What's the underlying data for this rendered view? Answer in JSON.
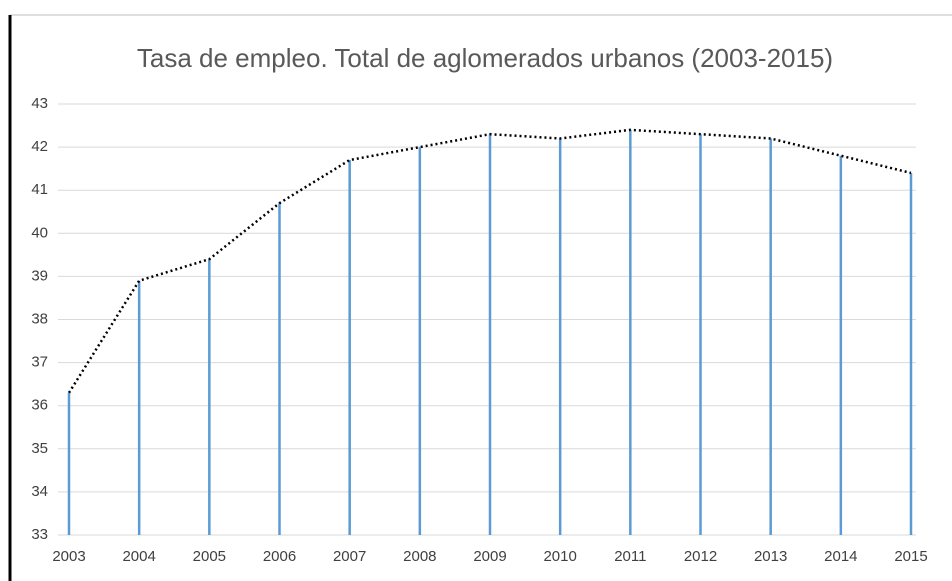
{
  "chart_data": {
    "type": "line",
    "title": "Tasa de empleo. Total de aglomerados urbanos (2003-2015)",
    "categories": [
      "2003",
      "2004",
      "2005",
      "2006",
      "2007",
      "2008",
      "2009",
      "2010",
      "2011",
      "2012",
      "2013",
      "2014",
      "2015"
    ],
    "series": [
      {
        "color": "#000000",
        "drop_line_color": "#5b9bd5",
        "values": [
          36.3,
          38.9,
          39.4,
          40.7,
          41.7,
          42.0,
          42.3,
          42.2,
          42.4,
          42.3,
          42.2,
          41.8,
          41.4
        ]
      }
    ],
    "ylim": [
      33,
      43
    ],
    "yticks": [
      33,
      34,
      35,
      36,
      37,
      38,
      39,
      40,
      41,
      42,
      43
    ],
    "grid": true,
    "line_style": "dotted",
    "drop_lines": true
  }
}
